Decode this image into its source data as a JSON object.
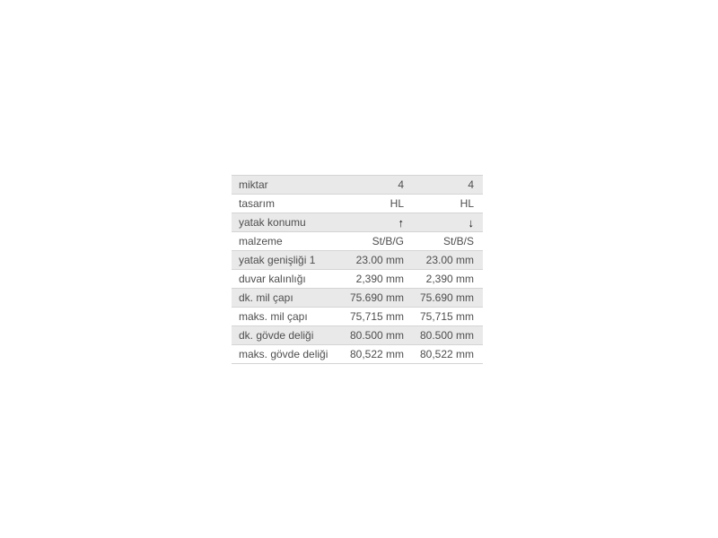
{
  "page": {
    "background": "#ffffff"
  },
  "specs_table": {
    "colors": {
      "stripe_bg": "#e9e9e9",
      "plain_bg": "#ffffff",
      "border": "#d4d4d4",
      "text": "#4e4e4e",
      "arrow": "#141414"
    },
    "rows": [
      {
        "label": "miktar",
        "values": [
          "4",
          "4"
        ],
        "arrow": false,
        "icons": []
      },
      {
        "label": "tasarım",
        "values": [
          "HL",
          "HL"
        ],
        "arrow": false,
        "icons": []
      },
      {
        "label": "yatak konumu",
        "values": [
          "↑",
          "↓"
        ],
        "arrow": true,
        "icons": [
          "arrow-up-icon",
          "arrow-down-icon"
        ]
      },
      {
        "label": "malzeme",
        "values": [
          "St/B/G",
          "St/B/S"
        ],
        "arrow": false,
        "icons": []
      },
      {
        "label": "yatak genişliği 1",
        "values": [
          "23.00 mm",
          "23.00 mm"
        ],
        "arrow": false,
        "icons": []
      },
      {
        "label": "duvar kalınlığı",
        "values": [
          "2,390 mm",
          "2,390 mm"
        ],
        "arrow": false,
        "icons": []
      },
      {
        "label": "dk. mil çapı",
        "values": [
          "75.690 mm",
          "75.690 mm"
        ],
        "arrow": false,
        "icons": []
      },
      {
        "label": "maks. mil çapı",
        "values": [
          "75,715 mm",
          "75,715 mm"
        ],
        "arrow": false,
        "icons": []
      },
      {
        "label": "dk. gövde deliği",
        "values": [
          "80.500 mm",
          "80.500 mm"
        ],
        "arrow": false,
        "icons": []
      },
      {
        "label": "maks. gövde deliği",
        "values": [
          "80,522 mm",
          "80,522 mm"
        ],
        "arrow": false,
        "icons": []
      }
    ]
  }
}
